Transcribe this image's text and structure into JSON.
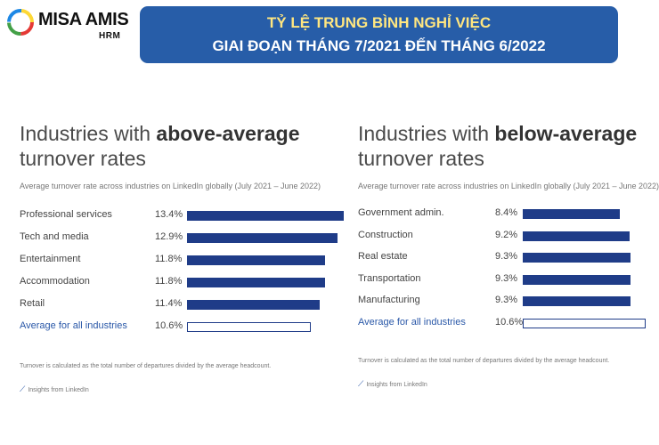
{
  "logo": {
    "brand": "MISA AMIS",
    "product": "HRM",
    "icon": "misa-logo-icon"
  },
  "banner": {
    "line1": "TỶ LỆ TRUNG BÌNH NGHỈ VIỆC",
    "line2": "GIAI ĐOẠN THÁNG 7/2021 ĐẾN THÁNG 6/2022"
  },
  "colors": {
    "bar": "#1f3c88",
    "banner": "#275da8",
    "banner_highlight": "#ffe680"
  },
  "chart_data": [
    {
      "type": "bar",
      "orientation": "horizontal",
      "title_prefix": "Industries with ",
      "title_bold": "above-average",
      "title_suffix": "turnover rates",
      "subtitle": "Average turnover rate across industries on LinkedIn globally (July 2021 – June 2022)",
      "categories": [
        "Professional services",
        "Tech and media",
        "Entertainment",
        "Accommodation",
        "Retail",
        "Average for all industries"
      ],
      "values": [
        13.4,
        12.9,
        11.8,
        11.8,
        11.4,
        10.6
      ],
      "value_labels": [
        "13.4%",
        "12.9%",
        "11.8%",
        "11.8%",
        "11.4%",
        "10.6%"
      ],
      "unit": "%",
      "average_index": 5,
      "footnote": "Turnover is calculated as the total number of departures divided by the average headcount.",
      "source": "Insights from LinkedIn"
    },
    {
      "type": "bar",
      "orientation": "horizontal",
      "title_prefix": "Industries with ",
      "title_bold": "below-average",
      "title_suffix": "turnover rates",
      "subtitle": "Average turnover rate across industries on LinkedIn globally (July 2021 – June 2022)",
      "categories": [
        "Government admin.",
        "Construction",
        "Real estate",
        "Transportation",
        "Manufacturing",
        "Average for all industries"
      ],
      "values": [
        8.4,
        9.2,
        9.3,
        9.3,
        9.3,
        10.6
      ],
      "value_labels": [
        "8.4%",
        "9.2%",
        "9.3%",
        "9.3%",
        "9.3%",
        "10.6%"
      ],
      "unit": "%",
      "average_index": 5,
      "footnote": "Turnover is calculated as the total number of departures divided by the average headcount.",
      "source": "Insights from LinkedIn"
    }
  ]
}
